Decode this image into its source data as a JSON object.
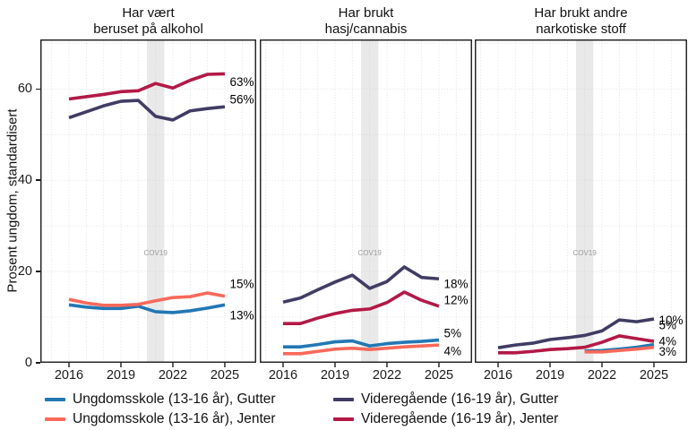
{
  "ylabel": "Prosent ungdom, standardisert",
  "legend": [
    {
      "group": "us_gutter",
      "label": "Ungdomsskole (13-16 år), Gutter",
      "color": "#2177B4"
    },
    {
      "group": "vg_gutter",
      "label": "Videregående (16-19 år), Gutter",
      "color": "#403C64"
    },
    {
      "group": "us_jenter",
      "label": "Ungdomsskole (13-16 år), Jenter",
      "color": "#F8695A"
    },
    {
      "group": "vg_jenter",
      "label": "Videregående (16-19 år), Jenter",
      "color": "#B31946"
    }
  ],
  "chart_data": {
    "type": "line",
    "x": [
      2016,
      2017,
      2018,
      2019,
      2020,
      2021,
      2022,
      2023,
      2024,
      2025
    ],
    "x_ticks": [
      2016,
      2019,
      2022,
      2025
    ],
    "ylim": [
      0,
      70.8
    ],
    "y_ticks_major": [
      0,
      20,
      40,
      60
    ],
    "y_ticks_minor": [
      10,
      30,
      50,
      70
    ],
    "grid": "dotted",
    "covid_band": {
      "from": 2020.5,
      "to": 2021.5,
      "label": "COV19",
      "color": "#CFCFCF"
    },
    "panels": [
      {
        "title": "Har vært\nberuset på alkohol",
        "series": [
          {
            "group": "us_gutter",
            "values": [
              12.7,
              12.2,
              11.9,
              11.9,
              12.4,
              11.2,
              11.0,
              11.4,
              12.0,
              12.7
            ],
            "end_label": "13%",
            "label_value": 10.4
          },
          {
            "group": "us_jenter",
            "values": [
              13.9,
              13.1,
              12.6,
              12.6,
              12.8,
              13.6,
              14.3,
              14.5,
              15.3,
              14.6
            ],
            "end_label": "15%",
            "label_value": 17.3
          },
          {
            "group": "vg_gutter",
            "values": [
              53.7,
              55.0,
              56.3,
              57.3,
              57.5,
              54.0,
              53.2,
              55.2,
              55.7,
              56.1
            ],
            "end_label": "56%",
            "label_value": 57.7
          },
          {
            "group": "vg_jenter",
            "values": [
              57.8,
              58.3,
              58.8,
              59.4,
              59.6,
              61.2,
              60.2,
              61.9,
              63.2,
              63.3
            ],
            "end_label": "63%",
            "label_value": 61.5
          }
        ]
      },
      {
        "title": "Har brukt\nhasj/cannabis",
        "series": [
          {
            "group": "us_gutter",
            "values": [
              3.5,
              3.5,
              4.0,
              4.6,
              4.8,
              3.7,
              4.2,
              4.5,
              4.7,
              5.0
            ],
            "end_label": "5%",
            "label_value": 6.5
          },
          {
            "group": "us_jenter",
            "values": [
              2.0,
              2.0,
              2.5,
              3.0,
              3.2,
              2.9,
              3.2,
              3.5,
              3.7,
              3.9
            ],
            "end_label": "4%",
            "label_value": 2.6
          },
          {
            "group": "vg_gutter",
            "values": [
              13.3,
              14.2,
              16.0,
              17.7,
              19.2,
              16.3,
              17.8,
              21.0,
              18.7,
              18.4
            ],
            "end_label": "18%",
            "label_value": 17.3
          },
          {
            "group": "vg_jenter",
            "values": [
              8.6,
              8.6,
              9.8,
              10.8,
              11.5,
              11.8,
              13.2,
              15.5,
              13.7,
              12.4
            ],
            "end_label": "12%",
            "label_value": 13.7
          }
        ]
      },
      {
        "title": "Har brukt andre\nnarkotiske stoff",
        "series": [
          {
            "group": "us_gutter",
            "values": [
              null,
              null,
              null,
              null,
              null,
              2.6,
              2.7,
              3.0,
              3.4,
              4.0
            ],
            "end_label": "4%",
            "label_value": 4.7
          },
          {
            "group": "us_jenter",
            "values": [
              null,
              null,
              null,
              null,
              null,
              2.4,
              2.4,
              2.7,
              3.0,
              3.4
            ],
            "end_label": "3%",
            "label_value": 2.5
          },
          {
            "group": "vg_gutter",
            "values": [
              3.3,
              3.9,
              4.3,
              5.1,
              5.5,
              6.0,
              7.0,
              9.4,
              9.0,
              9.6
            ],
            "end_label": "10%",
            "label_value": 9.3
          },
          {
            "group": "vg_jenter",
            "values": [
              2.2,
              2.2,
              2.5,
              2.9,
              3.1,
              3.4,
              4.5,
              5.9,
              5.3,
              4.7
            ],
            "end_label": "5%",
            "label_value": 8.2
          }
        ]
      }
    ]
  }
}
